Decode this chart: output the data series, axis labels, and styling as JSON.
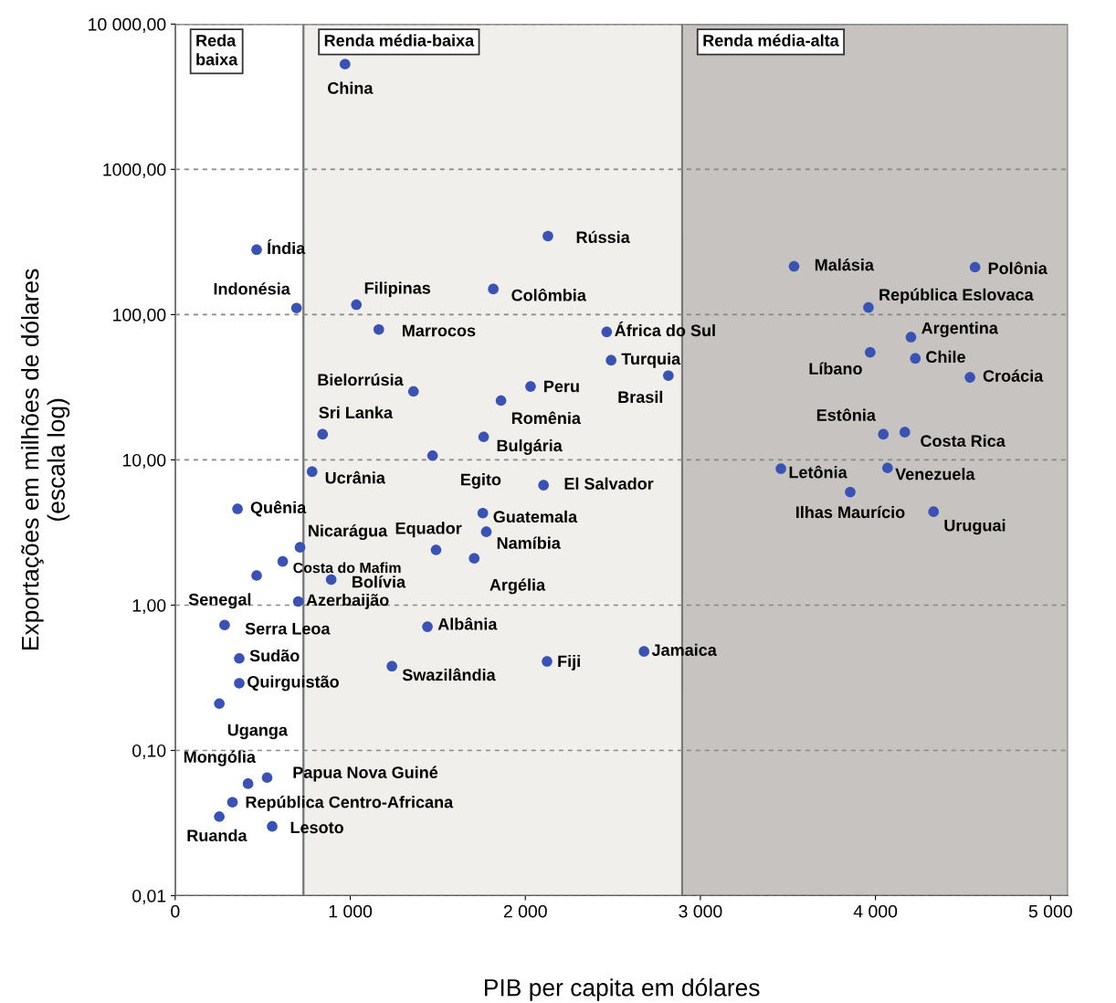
{
  "chart_data": {
    "type": "scatter",
    "xlabel": "PIB per capita em dólares",
    "ylabel": "Exportações em milhões de dólares\n(escala log)",
    "x": [
      970,
      465,
      693,
      1035,
      1163,
      2129,
      1817,
      2465,
      2490,
      2817,
      2030,
      1861,
      1361,
      842,
      1762,
      1470,
      782,
      2104,
      356,
      1757,
      1777,
      713,
      1490,
      614,
      1708,
      465,
      891,
      703,
      282,
      1441,
      2678,
      2124,
      1238,
      366,
      366,
      252,
      416,
      525,
      327,
      252,
      554,
      3535,
      4569,
      3960,
      4203,
      3970,
      4228,
      4540,
      4045,
      4168,
      3460,
      4069,
      3856,
      4332
    ],
    "series": [
      {
        "color": "#3a52b4",
        "values": [
          5300,
          280,
          111,
          117,
          79,
          347,
          150,
          76,
          48.5,
          38,
          32,
          25.6,
          29.6,
          15,
          14.4,
          10.7,
          8.3,
          6.7,
          4.6,
          4.3,
          3.2,
          2.5,
          2.4,
          2.0,
          2.1,
          1.6,
          1.5,
          1.06,
          0.73,
          0.71,
          0.48,
          0.41,
          0.38,
          0.43,
          0.29,
          0.21,
          0.059,
          0.065,
          0.044,
          0.035,
          0.03,
          215,
          212,
          112,
          70,
          55,
          50,
          37,
          15,
          15.5,
          8.7,
          8.8,
          6.0,
          4.4
        ]
      }
    ],
    "annotations": [
      {
        "text": "China",
        "x": 970,
        "y": 5300
      },
      {
        "text": "Índia",
        "x": 465,
        "y": 280
      },
      {
        "text": "Indonésia",
        "x": 693,
        "y": 111
      },
      {
        "text": "Filipinas",
        "x": 1035,
        "y": 117
      },
      {
        "text": "Marrocos",
        "x": 1163,
        "y": 79
      },
      {
        "text": "Rússia",
        "x": 2129,
        "y": 347
      },
      {
        "text": "Colômbia",
        "x": 1817,
        "y": 150
      },
      {
        "text": "África do Sul",
        "x": 2465,
        "y": 76
      },
      {
        "text": "Turquia",
        "x": 2490,
        "y": 48.5
      },
      {
        "text": "Brasil",
        "x": 2817,
        "y": 38
      },
      {
        "text": "Peru",
        "x": 2030,
        "y": 32
      },
      {
        "text": "Romênia",
        "x": 1861,
        "y": 25.6
      },
      {
        "text": "Bielorrúsia",
        "x": 1361,
        "y": 29.6
      },
      {
        "text": "Sri Lanka",
        "x": 842,
        "y": 15
      },
      {
        "text": "Bulgária",
        "x": 1762,
        "y": 14.4
      },
      {
        "text": "Egito",
        "x": 1470,
        "y": 10.7
      },
      {
        "text": "Ucrânia",
        "x": 782,
        "y": 8.3
      },
      {
        "text": "El Salvador",
        "x": 2104,
        "y": 6.7
      },
      {
        "text": "Quênia",
        "x": 356,
        "y": 4.6
      },
      {
        "text": "Guatemala",
        "x": 1757,
        "y": 4.3
      },
      {
        "text": "Namíbia",
        "x": 1777,
        "y": 3.2
      },
      {
        "text": "Nicarágua",
        "x": 713,
        "y": 2.5
      },
      {
        "text": "Equador",
        "x": 1490,
        "y": 2.4
      },
      {
        "text": "Costa do Mafim",
        "x": 614,
        "y": 2.0
      },
      {
        "text": "Argélia",
        "x": 1708,
        "y": 2.1
      },
      {
        "text": "Senegal",
        "x": 465,
        "y": 1.6
      },
      {
        "text": "Bolívia",
        "x": 891,
        "y": 1.5
      },
      {
        "text": "Azerbaijão",
        "x": 703,
        "y": 1.06
      },
      {
        "text": "Serra Leoa",
        "x": 282,
        "y": 0.73
      },
      {
        "text": "Albânia",
        "x": 1441,
        "y": 0.71
      },
      {
        "text": "Jamaica",
        "x": 2678,
        "y": 0.48
      },
      {
        "text": "Fiji",
        "x": 2124,
        "y": 0.41
      },
      {
        "text": "Swazilândia",
        "x": 1238,
        "y": 0.38
      },
      {
        "text": "Sudão",
        "x": 366,
        "y": 0.43
      },
      {
        "text": "Quirguistão",
        "x": 366,
        "y": 0.29
      },
      {
        "text": "Uganga",
        "x": 252,
        "y": 0.21
      },
      {
        "text": "Mongólia",
        "x": 416,
        "y": 0.059
      },
      {
        "text": "Papua Nova Guiné",
        "x": 525,
        "y": 0.065
      },
      {
        "text": "República Centro-Africana",
        "x": 327,
        "y": 0.044
      },
      {
        "text": "Ruanda",
        "x": 252,
        "y": 0.035
      },
      {
        "text": "Lesoto",
        "x": 554,
        "y": 0.03
      },
      {
        "text": "Malásia",
        "x": 3535,
        "y": 215
      },
      {
        "text": "Polônia",
        "x": 4569,
        "y": 212
      },
      {
        "text": "República Eslovaca",
        "x": 3960,
        "y": 112
      },
      {
        "text": "Argentina",
        "x": 4203,
        "y": 70
      },
      {
        "text": "Líbano",
        "x": 3970,
        "y": 55
      },
      {
        "text": "Chile",
        "x": 4228,
        "y": 50
      },
      {
        "text": "Croácia",
        "x": 4540,
        "y": 37
      },
      {
        "text": "Estônia",
        "x": 4045,
        "y": 15
      },
      {
        "text": "Costa Rica",
        "x": 4168,
        "y": 15.5
      },
      {
        "text": "Letônia",
        "x": 3460,
        "y": 8.7
      },
      {
        "text": "Venezuela",
        "x": 4069,
        "y": 8.8
      },
      {
        "text": "Ilhas Maurício",
        "x": 3856,
        "y": 6.0
      },
      {
        "text": "Uruguai",
        "x": 4332,
        "y": 4.4
      }
    ],
    "bands": [
      {
        "axis": "x",
        "from": 0,
        "to": 733,
        "label": "Reda\nbaixa",
        "color": "#ffffff"
      },
      {
        "axis": "x",
        "from": 733,
        "to": 2896,
        "label": "Renda média-baixa",
        "color": "#f1efec"
      },
      {
        "axis": "x",
        "from": 2896,
        "to": 5100,
        "label": "Renda média-alta",
        "color": "#c7c3c0"
      }
    ],
    "log": "y",
    "xlim": [
      0,
      5100
    ],
    "xticks": [
      0,
      {
        "value": 1000,
        "label": "1 000"
      },
      {
        "value": 2000,
        "label": "2 000"
      },
      {
        "value": 3000,
        "label": "3 000"
      },
      {
        "value": 4000,
        "label": "4 000"
      },
      {
        "value": 5000,
        "label": "5 000"
      }
    ],
    "ylim": [
      0.01,
      10000
    ],
    "yticks": [
      {
        "value": 0.01,
        "label": "0,01"
      },
      {
        "value": 0.1,
        "label": "0,10"
      },
      {
        "value": 1,
        "label": "1,00"
      },
      {
        "value": 10,
        "label": "10,00"
      },
      {
        "value": 100,
        "label": "100,00"
      },
      {
        "value": 1000,
        "label": "1000,00"
      },
      {
        "value": 10000,
        "label": "10 000,00"
      }
    ],
    "grid": "y",
    "marker": "circle",
    "legend": false
  }
}
